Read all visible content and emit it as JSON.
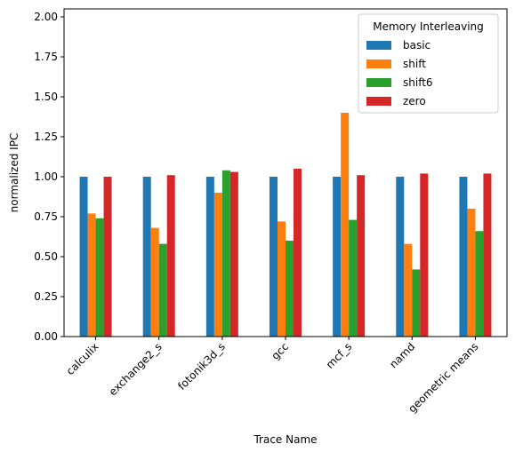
{
  "chart_data": {
    "type": "bar",
    "title": "",
    "xlabel": "Trace Name",
    "ylabel": "normalized IPC",
    "ylim": [
      0,
      2.05
    ],
    "yticks": [
      "0.00",
      "0.25",
      "0.50",
      "0.75",
      "1.00",
      "1.25",
      "1.50",
      "1.75",
      "2.00"
    ],
    "grid": false,
    "legend": {
      "title": "Memory Interleaving",
      "placement": "top-right"
    },
    "categories": [
      "calculix",
      "exchange2_s",
      "fotonik3d_s",
      "gcc",
      "mcf_s",
      "namd",
      "geometric means"
    ],
    "series": [
      {
        "name": "basic",
        "color": "#1f77b4",
        "values": [
          1.0,
          1.0,
          1.0,
          1.0,
          1.0,
          1.0,
          1.0
        ]
      },
      {
        "name": "shift",
        "color": "#ff7f0e",
        "values": [
          0.77,
          0.68,
          0.9,
          0.72,
          1.4,
          0.58,
          0.8
        ]
      },
      {
        "name": "shift6",
        "color": "#2ca02c",
        "values": [
          0.74,
          0.58,
          1.04,
          0.6,
          0.73,
          0.42,
          0.66
        ]
      },
      {
        "name": "zero",
        "color": "#d62728",
        "values": [
          1.0,
          1.01,
          1.03,
          1.05,
          1.01,
          1.02,
          1.02
        ]
      }
    ]
  }
}
